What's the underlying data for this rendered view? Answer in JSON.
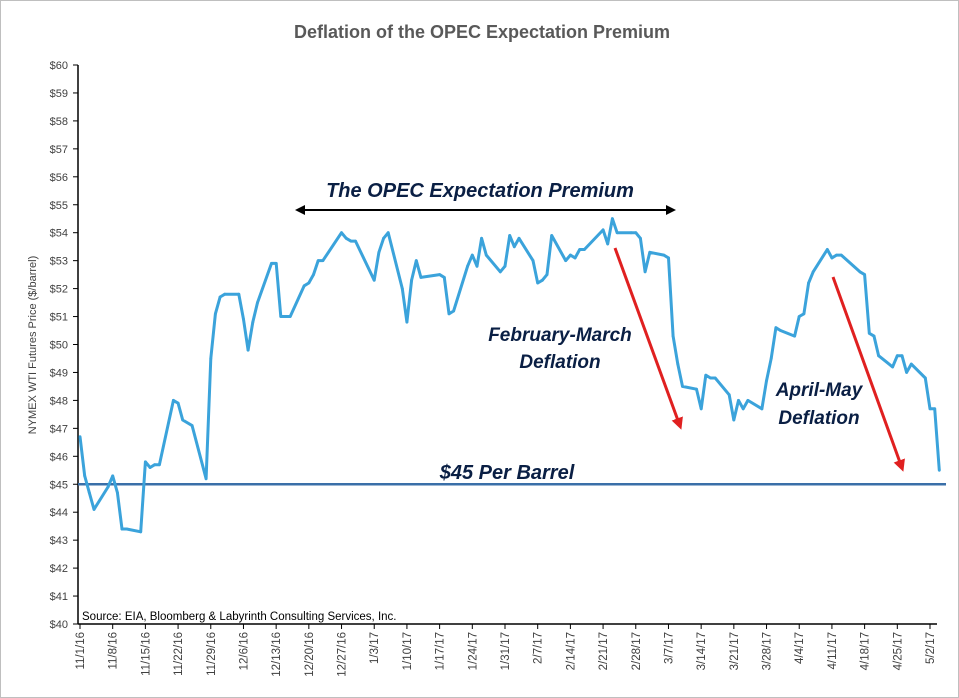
{
  "chart_data": {
    "type": "line",
    "title": "Deflation of the OPEC Expectation Premium",
    "ylabel": "NYMEX WTI Futures Price ($/barrel)",
    "xlabel": "",
    "ylim": [
      40,
      60
    ],
    "yticks": [
      "$40",
      "$41",
      "$42",
      "$43",
      "$44",
      "$45",
      "$46",
      "$47",
      "$48",
      "$49",
      "$50",
      "$51",
      "$52",
      "$53",
      "$54",
      "$55",
      "$56",
      "$57",
      "$58",
      "$59",
      "$60"
    ],
    "xticks": [
      "11/1/16",
      "11/8/16",
      "11/15/16",
      "11/22/16",
      "11/29/16",
      "12/6/16",
      "12/13/16",
      "12/20/16",
      "12/27/16",
      "1/3/17",
      "1/10/17",
      "1/17/17",
      "1/24/17",
      "1/31/17",
      "2/7/17",
      "2/14/17",
      "2/21/17",
      "2/28/17",
      "3/7/17",
      "3/14/17",
      "3/21/17",
      "3/28/17",
      "4/4/17",
      "4/11/17",
      "4/18/17",
      "4/25/17",
      "5/2/17"
    ],
    "grid": false,
    "series": [
      {
        "color": "#3ba3db",
        "x": [
          "11/1/16",
          "11/2/16",
          "11/3/16",
          "11/4/16",
          "11/7/16",
          "11/8/16",
          "11/9/16",
          "11/10/16",
          "11/11/16",
          "11/14/16",
          "11/15/16",
          "11/16/16",
          "11/17/16",
          "11/18/16",
          "11/21/16",
          "11/22/16",
          "11/23/16",
          "11/25/16",
          "11/28/16",
          "11/29/16",
          "11/30/16",
          "12/1/16",
          "12/2/16",
          "12/5/16",
          "12/6/16",
          "12/7/16",
          "12/8/16",
          "12/9/16",
          "12/12/16",
          "12/13/16",
          "12/14/16",
          "12/15/16",
          "12/16/16",
          "12/19/16",
          "12/20/16",
          "12/21/16",
          "12/22/16",
          "12/23/16",
          "12/27/16",
          "12/28/16",
          "12/29/16",
          "12/30/16",
          "1/3/17",
          "1/4/17",
          "1/5/17",
          "1/6/17",
          "1/9/17",
          "1/10/17",
          "1/11/17",
          "1/12/17",
          "1/13/17",
          "1/17/17",
          "1/18/17",
          "1/19/17",
          "1/20/17",
          "1/23/17",
          "1/24/17",
          "1/25/17",
          "1/26/17",
          "1/27/17",
          "1/30/17",
          "1/31/17",
          "2/1/17",
          "2/2/17",
          "2/3/17",
          "2/6/17",
          "2/7/17",
          "2/8/17",
          "2/9/17",
          "2/10/17",
          "2/13/17",
          "2/14/17",
          "2/15/17",
          "2/16/17",
          "2/17/17",
          "2/21/17",
          "2/22/17",
          "2/23/17",
          "2/24/17",
          "2/27/17",
          "2/28/17",
          "3/1/17",
          "3/2/17",
          "3/3/17",
          "3/6/17",
          "3/7/17",
          "3/8/17",
          "3/9/17",
          "3/10/17",
          "3/13/17",
          "3/14/17",
          "3/15/17",
          "3/16/17",
          "3/17/17",
          "3/20/17",
          "3/21/17",
          "3/22/17",
          "3/23/17",
          "3/24/17",
          "3/27/17",
          "3/28/17",
          "3/29/17",
          "3/30/17",
          "3/31/17",
          "4/3/17",
          "4/4/17",
          "4/5/17",
          "4/6/17",
          "4/7/17",
          "4/10/17",
          "4/11/17",
          "4/12/17",
          "4/13/17",
          "4/17/17",
          "4/18/17",
          "4/19/17",
          "4/20/17",
          "4/21/17",
          "4/24/17",
          "4/25/17",
          "4/26/17",
          "4/27/17",
          "4/28/17",
          "5/1/17",
          "5/2/17",
          "5/3/17",
          "5/4/17"
        ],
        "values": [
          46.7,
          45.3,
          44.7,
          44.1,
          44.9,
          45.3,
          44.7,
          43.4,
          43.4,
          43.3,
          45.8,
          45.6,
          45.7,
          45.7,
          48.0,
          47.9,
          47.3,
          47.1,
          45.2,
          49.5,
          51.1,
          51.7,
          51.8,
          51.8,
          50.9,
          49.8,
          50.8,
          51.5,
          52.9,
          52.9,
          51.0,
          51.0,
          51.0,
          52.1,
          52.2,
          52.5,
          53.0,
          53.0,
          54.0,
          53.8,
          53.7,
          53.7,
          52.3,
          53.3,
          53.8,
          54.0,
          52.0,
          50.8,
          52.3,
          53.0,
          52.4,
          52.5,
          52.4,
          51.1,
          51.2,
          52.8,
          53.2,
          52.8,
          53.8,
          53.2,
          52.6,
          52.8,
          53.9,
          53.5,
          53.8,
          53.0,
          52.2,
          52.3,
          52.5,
          53.9,
          53.0,
          53.2,
          53.1,
          53.4,
          53.4,
          54.1,
          53.6,
          54.5,
          54.0,
          54.0,
          54.0,
          53.8,
          52.6,
          53.3,
          53.2,
          53.1,
          50.3,
          49.3,
          48.5,
          48.4,
          47.7,
          48.9,
          48.8,
          48.8,
          48.2,
          47.3,
          48.0,
          47.7,
          48.0,
          47.7,
          48.7,
          49.5,
          50.6,
          50.5,
          50.3,
          51.0,
          51.1,
          52.2,
          52.6,
          53.4,
          53.1,
          53.2,
          53.2,
          52.6,
          52.5,
          50.4,
          50.3,
          49.6,
          49.2,
          49.6,
          49.6,
          49.0,
          49.3,
          48.8,
          47.7,
          47.7,
          45.5
        ]
      }
    ],
    "reference_line": {
      "value": 45,
      "label": "$45 Per Barrel",
      "color": "#3a6fa8"
    },
    "annotations": {
      "premium": "The OPEC Expectation Premium",
      "feb_line1": "February-March",
      "feb_line2": "Deflation",
      "apr_line1": "April-May",
      "apr_line2": "Deflation",
      "source": "Source:  EIA, Bloomberg & Labyrinth Consulting Services, Inc."
    },
    "arrow_color": "#e02020"
  }
}
